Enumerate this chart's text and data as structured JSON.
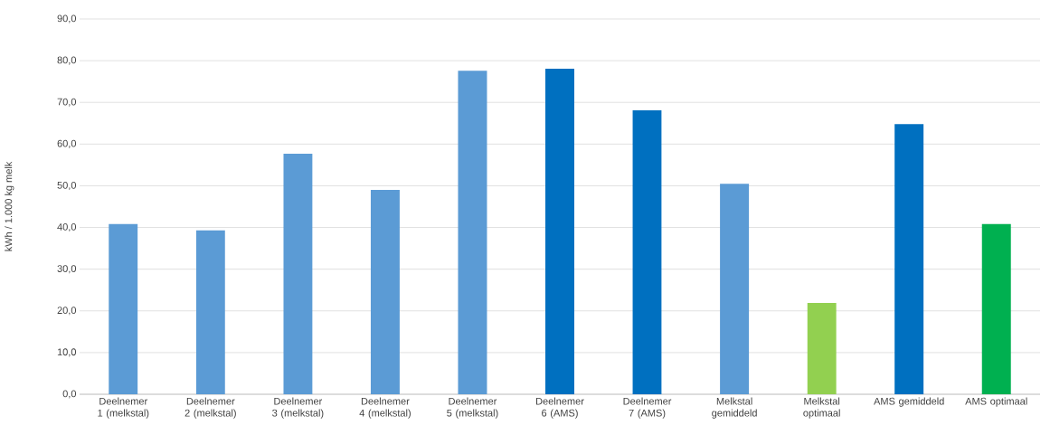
{
  "chart_data": {
    "type": "bar",
    "ylabel": "kWh / 1.000 kg melk",
    "categories": [
      "Deelnemer 1 (melkstal)",
      "Deelnemer 2 (melkstal)",
      "Deelnemer 3 (melkstal)",
      "Deelnemer 4 (melkstal)",
      "Deelnemer 5 (melkstal)",
      "Deelnemer 6 (AMS)",
      "Deelnemer 7 (AMS)",
      "Melkstal gemiddeld",
      "Melkstal optimaal",
      "AMS gemiddeld",
      "AMS optimaal"
    ],
    "values": [
      40.8,
      39.3,
      57.7,
      49.0,
      77.6,
      78.1,
      68.1,
      50.5,
      21.9,
      64.8,
      40.8
    ],
    "colors": [
      "#5b9bd5",
      "#5b9bd5",
      "#5b9bd5",
      "#5b9bd5",
      "#5b9bd5",
      "#0070c0",
      "#0070c0",
      "#5b9bd5",
      "#92d050",
      "#0070c0",
      "#00b050"
    ],
    "ylim": [
      0,
      90
    ],
    "yticks": [
      {
        "value": 0,
        "label": "0,0"
      },
      {
        "value": 10,
        "label": "10,0"
      },
      {
        "value": 20,
        "label": "20,0"
      },
      {
        "value": 30,
        "label": "30,0"
      },
      {
        "value": 40,
        "label": "40,0"
      },
      {
        "value": 50,
        "label": "50,0"
      },
      {
        "value": 60,
        "label": "60,0"
      },
      {
        "value": 70,
        "label": "70,0"
      },
      {
        "value": 80,
        "label": "80,0"
      },
      {
        "value": 90,
        "label": "90,0"
      }
    ],
    "grid": "y"
  }
}
